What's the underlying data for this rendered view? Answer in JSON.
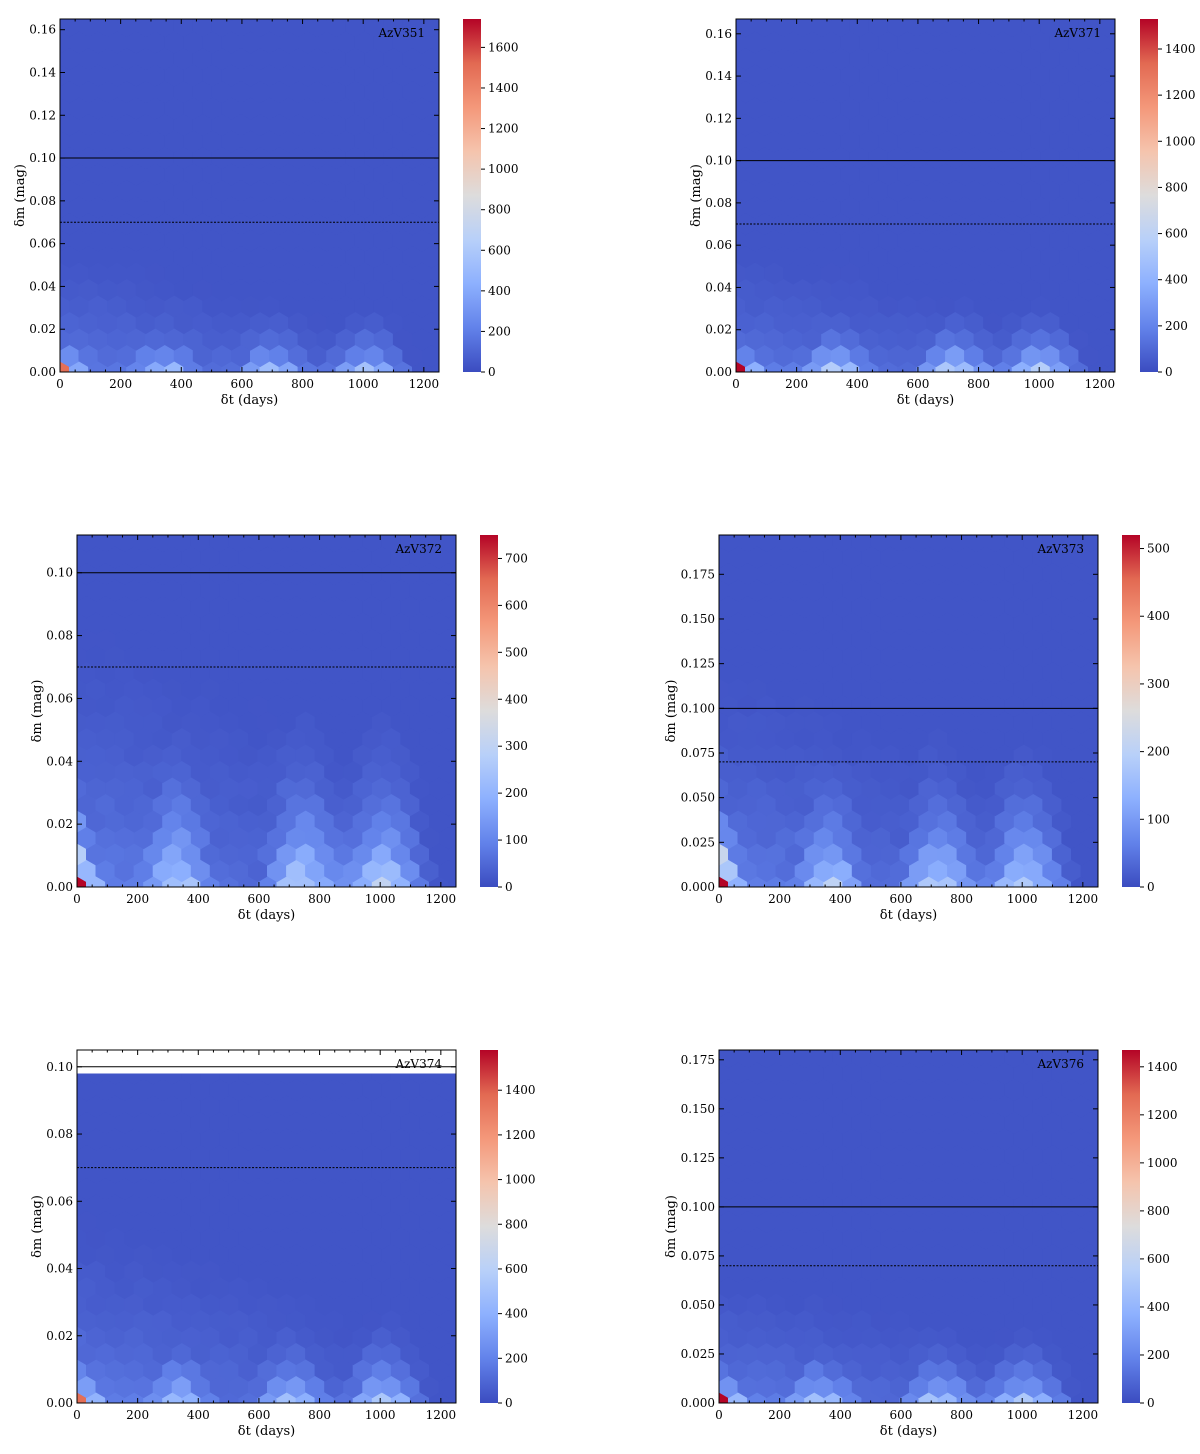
{
  "figure": {
    "colormap": [
      "#3b4cc0",
      "#6282ea",
      "#8db0fe",
      "#b8d0f9",
      "#dddcdc",
      "#f5c4ad",
      "#f4987a",
      "#e26952",
      "#b40426"
    ],
    "reference_lines": [
      {
        "value": 0.1,
        "style": "solid",
        "color": "#000000"
      },
      {
        "value": 0.07,
        "style": "dotted",
        "color": "#000000"
      }
    ]
  },
  "chart_data": [
    {
      "type": "heatmap",
      "name": "AzV351",
      "xlabel": "δt (days)",
      "ylabel": "δm (mag)",
      "xlim": [
        0,
        1250
      ],
      "ylim": [
        0,
        0.165
      ],
      "xticks": [
        0,
        200,
        400,
        600,
        800,
        1000,
        1200
      ],
      "xtick_labels": [
        "0",
        "200",
        "400",
        "600",
        "800",
        "1000",
        "1200"
      ],
      "yticks": [
        0.0,
        0.02,
        0.04,
        0.06,
        0.08,
        0.1,
        0.12,
        0.14,
        0.16
      ],
      "ytick_labels": [
        "0.00",
        "0.02",
        "0.04",
        "0.06",
        "0.08",
        "0.10",
        "0.12",
        "0.14",
        "0.16"
      ],
      "colorbar": {
        "min": 0,
        "max": 1740,
        "ticks": [
          0,
          200,
          400,
          600,
          800,
          1000,
          1200,
          1400,
          1600
        ],
        "tick_labels": [
          "0",
          "200",
          "400",
          "600",
          "800",
          "1000",
          "1200",
          "1400",
          "1600"
        ]
      },
      "density_model": {
        "peak": 1740,
        "hot_decay": 0.006,
        "bump_peaks_days": [
          340,
          700,
          1010
        ],
        "bump_strength": 0.28,
        "bump_decay": 0.012,
        "background_decay": 0.03
      },
      "hex_clip": null
    },
    {
      "type": "heatmap",
      "name": "AzV371",
      "xlabel": "δt (days)",
      "ylabel": "δm (mag)",
      "xlim": [
        0,
        1250
      ],
      "ylim": [
        0,
        0.167
      ],
      "xticks": [
        0,
        200,
        400,
        600,
        800,
        1000,
        1200
      ],
      "xtick_labels": [
        "0",
        "200",
        "400",
        "600",
        "800",
        "1000",
        "1200"
      ],
      "yticks": [
        0.0,
        0.02,
        0.04,
        0.06,
        0.08,
        0.1,
        0.12,
        0.14,
        0.16
      ],
      "ytick_labels": [
        "0.00",
        "0.02",
        "0.04",
        "0.06",
        "0.08",
        "0.10",
        "0.12",
        "0.14",
        "0.16"
      ],
      "colorbar": {
        "min": 0,
        "max": 1530,
        "ticks": [
          0,
          200,
          400,
          600,
          800,
          1000,
          1200,
          1400
        ],
        "tick_labels": [
          "0",
          "200",
          "400",
          "600",
          "800",
          "1000",
          "1200",
          "1400"
        ]
      },
      "density_model": {
        "peak": 1530,
        "hot_decay": 0.006,
        "bump_peaks_days": [
          330,
          720,
          1000
        ],
        "bump_strength": 0.33,
        "bump_decay": 0.012,
        "background_decay": 0.03
      },
      "hex_clip": null
    },
    {
      "type": "heatmap",
      "name": "AzV372",
      "xlabel": "δt (days)",
      "ylabel": "δm (mag)",
      "xlim": [
        0,
        1250
      ],
      "ylim": [
        0,
        0.112
      ],
      "xticks": [
        0,
        200,
        400,
        600,
        800,
        1000,
        1200
      ],
      "xtick_labels": [
        "0",
        "200",
        "400",
        "600",
        "800",
        "1000",
        "1200"
      ],
      "yticks": [
        0.0,
        0.02,
        0.04,
        0.06,
        0.08,
        0.1
      ],
      "ytick_labels": [
        "0.00",
        "0.02",
        "0.04",
        "0.06",
        "0.08",
        "0.10"
      ],
      "colorbar": {
        "min": 0,
        "max": 750,
        "ticks": [
          0,
          100,
          200,
          300,
          400,
          500,
          600,
          700
        ],
        "tick_labels": [
          "0",
          "100",
          "200",
          "300",
          "400",
          "500",
          "600",
          "700"
        ]
      },
      "density_model": {
        "peak": 750,
        "hot_decay": 0.012,
        "bump_peaks_days": [
          330,
          740,
          1010
        ],
        "bump_strength": 0.36,
        "bump_decay": 0.02,
        "background_decay": 0.045
      },
      "hex_clip": null
    },
    {
      "type": "heatmap",
      "name": "AzV373",
      "xlabel": "δt (days)",
      "ylabel": "δm (mag)",
      "xlim": [
        0,
        1250
      ],
      "ylim": [
        0,
        0.197
      ],
      "xticks": [
        0,
        200,
        400,
        600,
        800,
        1000,
        1200
      ],
      "xtick_labels": [
        "0",
        "200",
        "400",
        "600",
        "800",
        "1000",
        "1200"
      ],
      "yticks": [
        0.0,
        0.025,
        0.05,
        0.075,
        0.1,
        0.125,
        0.15,
        0.175
      ],
      "ytick_labels": [
        "0.000",
        "0.025",
        "0.050",
        "0.075",
        "0.100",
        "0.125",
        "0.150",
        "0.175"
      ],
      "colorbar": {
        "min": 0,
        "max": 520,
        "ticks": [
          0,
          100,
          200,
          300,
          400,
          500
        ],
        "tick_labels": [
          "0",
          "100",
          "200",
          "300",
          "400",
          "500"
        ]
      },
      "density_model": {
        "peak": 520,
        "hot_decay": 0.02,
        "bump_peaks_days": [
          360,
          720,
          1010
        ],
        "bump_strength": 0.36,
        "bump_decay": 0.03,
        "background_decay": 0.065
      },
      "hex_clip": null
    },
    {
      "type": "heatmap",
      "name": "AzV374",
      "xlabel": "δt (days)",
      "ylabel": "δm (mag)",
      "xlim": [
        0,
        1250
      ],
      "ylim": [
        0,
        0.105
      ],
      "xticks": [
        0,
        200,
        400,
        600,
        800,
        1000,
        1200
      ],
      "xtick_labels": [
        "0",
        "200",
        "400",
        "600",
        "800",
        "1000",
        "1200"
      ],
      "yticks": [
        0.0,
        0.02,
        0.04,
        0.06,
        0.08,
        0.1
      ],
      "ytick_labels": [
        "0.00",
        "0.02",
        "0.04",
        "0.06",
        "0.08",
        "0.10"
      ],
      "colorbar": {
        "min": 0,
        "max": 1580,
        "ticks": [
          0,
          200,
          400,
          600,
          800,
          1000,
          1200,
          1400
        ],
        "tick_labels": [
          "0",
          "200",
          "400",
          "600",
          "800",
          "1000",
          "1200",
          "1400"
        ]
      },
      "density_model": {
        "peak": 1580,
        "hot_decay": 0.005,
        "bump_peaks_days": [
          330,
          700,
          1010
        ],
        "bump_strength": 0.3,
        "bump_decay": 0.01,
        "background_decay": 0.03
      },
      "hex_clip": 0.098
    },
    {
      "type": "heatmap",
      "name": "AzV376",
      "xlabel": "δt (days)",
      "ylabel": "δm (mag)",
      "xlim": [
        0,
        1250
      ],
      "ylim": [
        0,
        0.18
      ],
      "xticks": [
        0,
        200,
        400,
        600,
        800,
        1000,
        1200
      ],
      "xtick_labels": [
        "0",
        "200",
        "400",
        "600",
        "800",
        "1000",
        "1200"
      ],
      "yticks": [
        0.0,
        0.025,
        0.05,
        0.075,
        0.1,
        0.125,
        0.15,
        0.175
      ],
      "ytick_labels": [
        "0.000",
        "0.025",
        "0.050",
        "0.075",
        "0.100",
        "0.125",
        "0.150",
        "0.175"
      ],
      "colorbar": {
        "min": 0,
        "max": 1470,
        "ticks": [
          0,
          200,
          400,
          600,
          800,
          1000,
          1200,
          1400
        ],
        "tick_labels": [
          "0",
          "200",
          "400",
          "600",
          "800",
          "1000",
          "1200",
          "1400"
        ]
      },
      "density_model": {
        "peak": 1470,
        "hot_decay": 0.007,
        "bump_peaks_days": [
          330,
          720,
          1010
        ],
        "bump_strength": 0.33,
        "bump_decay": 0.014,
        "background_decay": 0.035
      },
      "hex_clip": null
    }
  ]
}
